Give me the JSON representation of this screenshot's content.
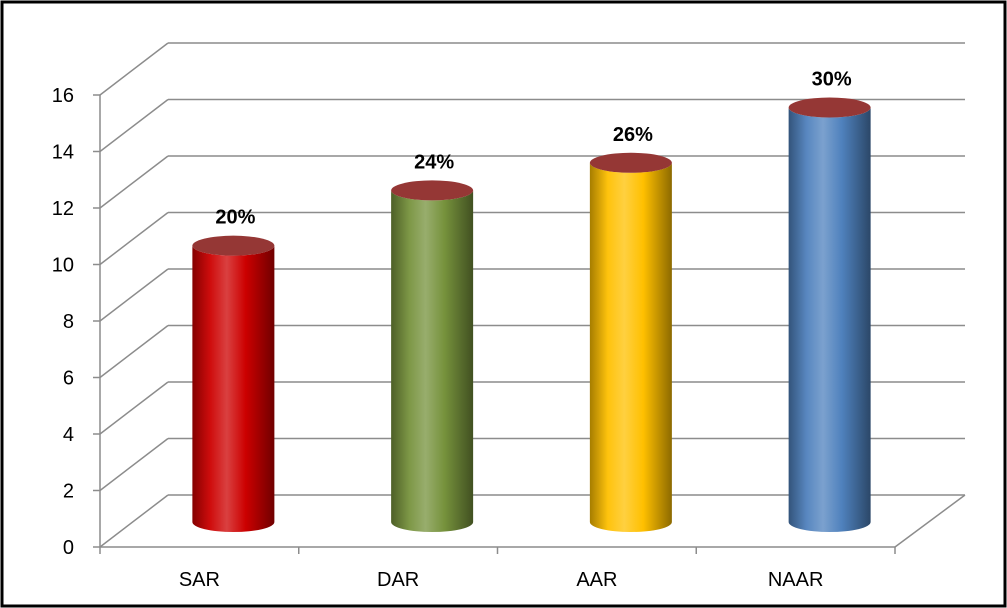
{
  "chart_data": {
    "type": "bar",
    "style": "3d-cylinder",
    "categories": [
      "SAR",
      "DAR",
      "AAR",
      "NAAR"
    ],
    "values": [
      10,
      12,
      13,
      15
    ],
    "data_labels": [
      "20%",
      "24%",
      "26%",
      "30%"
    ],
    "ylim": [
      0,
      16
    ],
    "yticks": [
      0,
      2,
      4,
      6,
      8,
      10,
      12,
      14,
      16
    ],
    "ytick_labels": [
      "0",
      "2",
      "4",
      "6",
      "8",
      "10",
      "12",
      "14",
      "16"
    ],
    "grid": true,
    "legend": "none",
    "colors": [
      "#cc0000",
      "#76923c",
      "#ffc000",
      "#4f81bd"
    ],
    "cap_color": "#953735"
  }
}
